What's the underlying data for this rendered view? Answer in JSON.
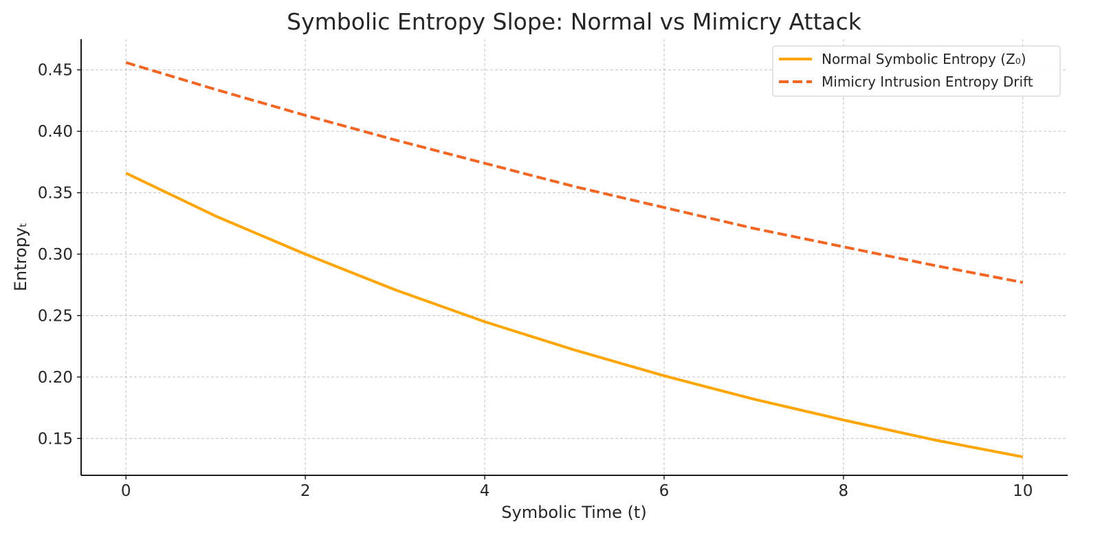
{
  "chart_data": {
    "type": "line",
    "title": "Symbolic Entropy Slope: Normal vs Mimicry Attack",
    "xlabel": "Symbolic Time (t)",
    "ylabel": "Entropyₜ",
    "xlim": [
      -0.5,
      10.5
    ],
    "ylim": [
      0.12,
      0.475
    ],
    "xticks": [
      0,
      2,
      4,
      6,
      8,
      10
    ],
    "xtick_labels": [
      "0",
      "2",
      "4",
      "6",
      "8",
      "10"
    ],
    "yticks": [
      0.15,
      0.2,
      0.25,
      0.3,
      0.35,
      0.4,
      0.45
    ],
    "ytick_labels": [
      "0.15",
      "0.20",
      "0.25",
      "0.30",
      "0.35",
      "0.40",
      "0.45"
    ],
    "grid": true,
    "legend_position": "upper right",
    "x": [
      0,
      1,
      2,
      3,
      4,
      5,
      6,
      7,
      8,
      9,
      10
    ],
    "series": [
      {
        "name": "Normal Symbolic Entropy (Z₀)",
        "style": "solid",
        "color": "#FFA500",
        "values": [
          0.366,
          0.331,
          0.3,
          0.271,
          0.245,
          0.222,
          0.201,
          0.182,
          0.165,
          0.149,
          0.135
        ]
      },
      {
        "name": "Mimicry Intrusion Entropy Drift",
        "style": "dashed",
        "color": "#F26522",
        "values": [
          0.456,
          0.434,
          0.413,
          0.393,
          0.374,
          0.355,
          0.338,
          0.321,
          0.306,
          0.291,
          0.277
        ]
      }
    ]
  }
}
